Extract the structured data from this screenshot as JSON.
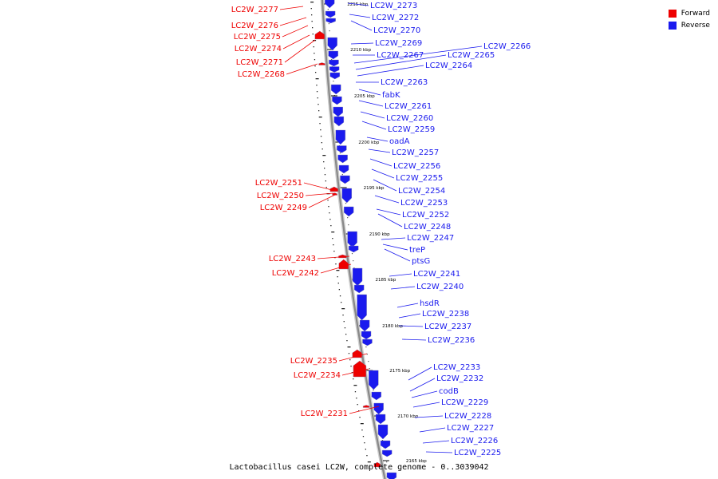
{
  "caption": "Lactobacillus casei LC2W, complete genome - 0..3039042",
  "legend": [
    {
      "label": "Forward",
      "color": "#ee0000"
    },
    {
      "label": "Reverse",
      "color": "#1a1aee"
    }
  ],
  "colors": {
    "forward": "#ee0000",
    "reverse": "#1a1aee",
    "backbone": "#888888"
  },
  "ticks": [
    "2215 kbp",
    "2210 kbp",
    "2205 kbp",
    "2200 kbp",
    "2195 kbp",
    "2190 kbp",
    "2185 kbp",
    "2180 kbp",
    "2175 kbp",
    "2170 kbp",
    "2165 kbp"
  ],
  "forward_labels": [
    "LC2W_2277",
    "LC2W_2276",
    "LC2W_2275",
    "LC2W_2274",
    "LC2W_2271",
    "LC2W_2268",
    "LC2W_2251",
    "LC2W_2250",
    "LC2W_2249",
    "LC2W_2243",
    "LC2W_2242",
    "LC2W_2235",
    "LC2W_2234",
    "LC2W_2231"
  ],
  "reverse_labels": [
    "LC2W_2273",
    "LC2W_2272",
    "LC2W_2270",
    "LC2W_2269",
    "LC2W_2267",
    "LC2W_2266",
    "LC2W_2265",
    "LC2W_2264",
    "LC2W_2263",
    "fabK",
    "LC2W_2261",
    "LC2W_2260",
    "LC2W_2259",
    "oadA",
    "LC2W_2257",
    "LC2W_2256",
    "LC2W_2255",
    "LC2W_2254",
    "LC2W_2253",
    "LC2W_2252",
    "LC2W_2248",
    "LC2W_2247",
    "treP",
    "ptsG",
    "LC2W_2241",
    "LC2W_2240",
    "hsdR",
    "LC2W_2238",
    "LC2W_2237",
    "LC2W_2236",
    "LC2W_2233",
    "LC2W_2232",
    "codB",
    "LC2W_2229",
    "LC2W_2228",
    "LC2W_2227",
    "LC2W_2226",
    "LC2W_2225"
  ]
}
